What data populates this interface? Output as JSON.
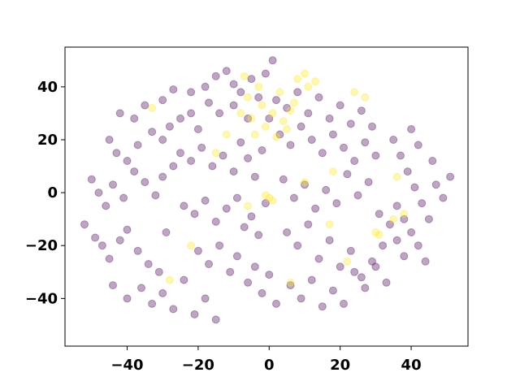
{
  "chart_data": {
    "type": "scatter",
    "title": "",
    "xlabel": "",
    "ylabel": "",
    "xlim": [
      -57.5,
      56.0
    ],
    "ylim": [
      -58.0,
      55.0
    ],
    "xticks": [
      -40,
      -20,
      0,
      20,
      40
    ],
    "yticks": [
      -40,
      -20,
      0,
      20,
      40
    ],
    "xtick_labels": [
      "−40",
      "−20",
      "0",
      "20",
      "40"
    ],
    "ytick_labels": [
      "−40",
      "−20",
      "0",
      "20",
      "40"
    ],
    "grid": false,
    "legend": "none",
    "colors": {
      "class_0": "#440154",
      "class_1": "#fde725"
    },
    "marker_opacity": 0.35,
    "series": [
      {
        "points": [
          [
            -42,
            30
          ],
          [
            -38,
            28
          ],
          [
            -35,
            33
          ],
          [
            -30,
            35
          ],
          [
            -27,
            39
          ],
          [
            -22,
            38
          ],
          [
            -18,
            40
          ],
          [
            -15,
            44
          ],
          [
            -12,
            46
          ],
          [
            -10,
            41
          ],
          [
            -45,
            20
          ],
          [
            -43,
            15
          ],
          [
            -40,
            12
          ],
          [
            -37,
            18
          ],
          [
            -33,
            23
          ],
          [
            -30,
            20
          ],
          [
            -28,
            25
          ],
          [
            -25,
            28
          ],
          [
            -22,
            30
          ],
          [
            -20,
            24
          ],
          [
            -50,
            5
          ],
          [
            -48,
            0
          ],
          [
            -46,
            -5
          ],
          [
            -44,
            3
          ],
          [
            -41,
            -2
          ],
          [
            -38,
            8
          ],
          [
            -35,
            4
          ],
          [
            -32,
            -1
          ],
          [
            -30,
            6
          ],
          [
            -27,
            10
          ],
          [
            -52,
            -12
          ],
          [
            -49,
            -17
          ],
          [
            -47,
            -20
          ],
          [
            -45,
            -25
          ],
          [
            -42,
            -18
          ],
          [
            -40,
            -14
          ],
          [
            -37,
            -22
          ],
          [
            -34,
            -27
          ],
          [
            -31,
            -30
          ],
          [
            -29,
            -15
          ],
          [
            -44,
            -35
          ],
          [
            -40,
            -40
          ],
          [
            -36,
            -36
          ],
          [
            -33,
            -42
          ],
          [
            -30,
            -38
          ],
          [
            -27,
            -44
          ],
          [
            -24,
            -33
          ],
          [
            -21,
            -46
          ],
          [
            -18,
            -40
          ],
          [
            -15,
            -48
          ],
          [
            -25,
            15
          ],
          [
            -22,
            12
          ],
          [
            -19,
            17
          ],
          [
            -16,
            10
          ],
          [
            -13,
            14
          ],
          [
            -10,
            8
          ],
          [
            -8,
            19
          ],
          [
            -6,
            13
          ],
          [
            -4,
            6
          ],
          [
            -2,
            16
          ],
          [
            -24,
            -5
          ],
          [
            -21,
            -8
          ],
          [
            -18,
            -3
          ],
          [
            -15,
            -11
          ],
          [
            -12,
            -6
          ],
          [
            -9,
            -2
          ],
          [
            -7,
            -13
          ],
          [
            -5,
            -9
          ],
          [
            -3,
            -16
          ],
          [
            -1,
            -4
          ],
          [
            -20,
            -22
          ],
          [
            -17,
            -27
          ],
          [
            -14,
            -20
          ],
          [
            -11,
            -30
          ],
          [
            -9,
            -24
          ],
          [
            -6,
            -34
          ],
          [
            -4,
            -28
          ],
          [
            -2,
            -38
          ],
          [
            0,
            -31
          ],
          [
            2,
            -42
          ],
          [
            2,
            35
          ],
          [
            5,
            32
          ],
          [
            8,
            38
          ],
          [
            11,
            30
          ],
          [
            14,
            36
          ],
          [
            17,
            28
          ],
          [
            20,
            33
          ],
          [
            23,
            26
          ],
          [
            26,
            31
          ],
          [
            29,
            25
          ],
          [
            3,
            22
          ],
          [
            6,
            18
          ],
          [
            9,
            25
          ],
          [
            12,
            20
          ],
          [
            15,
            15
          ],
          [
            18,
            22
          ],
          [
            21,
            17
          ],
          [
            24,
            12
          ],
          [
            27,
            19
          ],
          [
            30,
            14
          ],
          [
            4,
            5
          ],
          [
            7,
            -2
          ],
          [
            10,
            3
          ],
          [
            13,
            -6
          ],
          [
            16,
            1
          ],
          [
            19,
            -4
          ],
          [
            22,
            7
          ],
          [
            25,
            -1
          ],
          [
            28,
            4
          ],
          [
            31,
            -8
          ],
          [
            5,
            -15
          ],
          [
            8,
            -20
          ],
          [
            11,
            -12
          ],
          [
            14,
            -25
          ],
          [
            17,
            -18
          ],
          [
            20,
            -28
          ],
          [
            23,
            -22
          ],
          [
            26,
            -32
          ],
          [
            29,
            -26
          ],
          [
            32,
            -20
          ],
          [
            6,
            -35
          ],
          [
            9,
            -40
          ],
          [
            12,
            -33
          ],
          [
            15,
            -43
          ],
          [
            18,
            -37
          ],
          [
            21,
            -42
          ],
          [
            24,
            -30
          ],
          [
            27,
            -36
          ],
          [
            30,
            -28
          ],
          [
            33,
            -34
          ],
          [
            35,
            20
          ],
          [
            37,
            14
          ],
          [
            39,
            8
          ],
          [
            41,
            2
          ],
          [
            43,
            -4
          ],
          [
            45,
            -10
          ],
          [
            47,
            3
          ],
          [
            49,
            -2
          ],
          [
            51,
            6
          ],
          [
            46,
            12
          ],
          [
            34,
            -12
          ],
          [
            36,
            -18
          ],
          [
            38,
            -24
          ],
          [
            40,
            -15
          ],
          [
            42,
            -20
          ],
          [
            44,
            -26
          ],
          [
            36,
            -5
          ],
          [
            38,
            -10
          ],
          [
            40,
            24
          ],
          [
            42,
            18
          ],
          [
            -1,
            45
          ],
          [
            1,
            50
          ],
          [
            -5,
            43
          ],
          [
            -8,
            38
          ],
          [
            -3,
            36
          ],
          [
            0,
            28
          ],
          [
            -6,
            28
          ],
          [
            -10,
            33
          ],
          [
            -14,
            30
          ],
          [
            -17,
            34
          ]
        ]
      },
      {
        "points": [
          [
            -8,
            30
          ],
          [
            -5,
            28
          ],
          [
            -2,
            33
          ],
          [
            1,
            30
          ],
          [
            4,
            27
          ],
          [
            7,
            34
          ],
          [
            -6,
            36
          ],
          [
            -3,
            40
          ],
          [
            3,
            38
          ],
          [
            6,
            31
          ],
          [
            -4,
            22
          ],
          [
            -1,
            25
          ],
          [
            2,
            21
          ],
          [
            5,
            24
          ],
          [
            8,
            43
          ],
          [
            11,
            40
          ],
          [
            -7,
            44
          ],
          [
            10,
            45
          ],
          [
            13,
            42
          ],
          [
            -12,
            22
          ],
          [
            0,
            -2
          ],
          [
            1,
            -3
          ],
          [
            -1,
            -1
          ],
          [
            10,
            4
          ],
          [
            18,
            8
          ],
          [
            -6,
            -5
          ],
          [
            17,
            -12
          ],
          [
            35,
            -10
          ],
          [
            38,
            -8
          ],
          [
            30,
            -15
          ],
          [
            -22,
            -20
          ],
          [
            -28,
            -33
          ],
          [
            6,
            -34
          ],
          [
            22,
            -26
          ],
          [
            -15,
            15
          ],
          [
            31,
            -16
          ],
          [
            27,
            36
          ],
          [
            24,
            38
          ],
          [
            -33,
            32
          ],
          [
            36,
            6
          ]
        ]
      }
    ]
  }
}
